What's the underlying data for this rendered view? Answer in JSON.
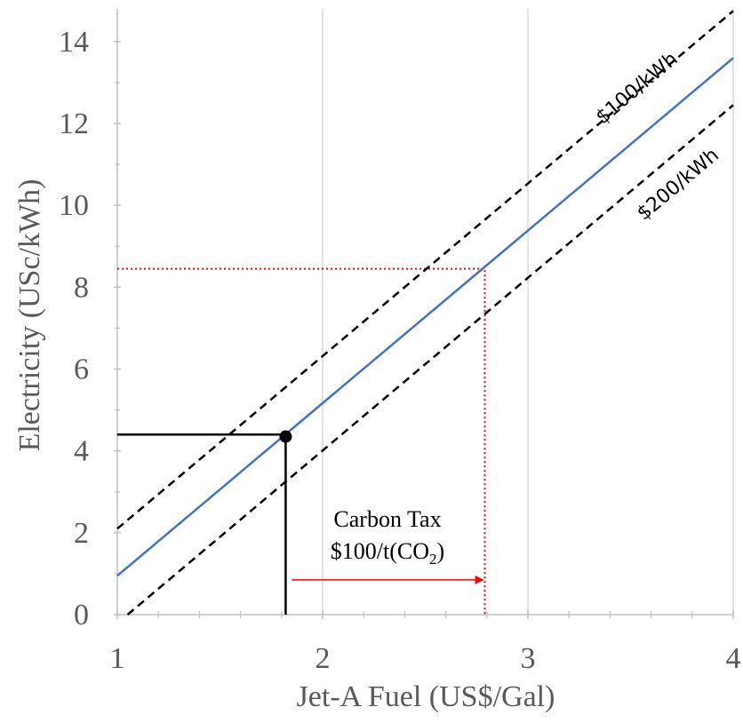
{
  "chart_data": {
    "type": "line",
    "title": "",
    "xlabel": "Jet-A Fuel (US$/Gal)",
    "ylabel": "Electricity (USc/kWh)",
    "xlim": [
      1,
      4
    ],
    "ylim": [
      0,
      14.8
    ],
    "x_ticks": [
      1,
      2,
      3,
      4
    ],
    "y_ticks": [
      0,
      2,
      4,
      6,
      8,
      10,
      12,
      14
    ],
    "x_tick_labels": [
      "1",
      "2",
      "3",
      "4"
    ],
    "y_tick_labels": [
      "0",
      "2",
      "4",
      "6",
      "8",
      "10",
      "12",
      "14"
    ],
    "x_minor_step": 0.2,
    "grid": "vertical major lines only",
    "series": [
      {
        "name": "",
        "style": "solid",
        "color": "#4472c4",
        "x": [
          1,
          4
        ],
        "y": [
          0.95,
          13.6
        ]
      },
      {
        "name": "$100/kWh",
        "style": "dashed",
        "color": "#000000",
        "x": [
          1,
          4
        ],
        "y": [
          2.1,
          14.75
        ]
      },
      {
        "name": "$200/kWh",
        "style": "dashed",
        "color": "#000000",
        "x": [
          1.05,
          4
        ],
        "y": [
          0.0,
          12.45
        ]
      }
    ],
    "line_labels": [
      {
        "text": "$100/kWh",
        "x": 3.55,
        "y": 12.75
      },
      {
        "text": "$200/kWh",
        "x": 3.75,
        "y": 10.4
      }
    ],
    "reference_lines": [
      {
        "color": "#000000",
        "style": "solid",
        "x": [
          1,
          1.82,
          1.82
        ],
        "y": [
          4.4,
          4.4,
          0
        ]
      },
      {
        "color": "#ff0000",
        "style": "dotted",
        "x": [
          1,
          2.79,
          2.79
        ],
        "y": [
          8.45,
          8.45,
          0
        ]
      }
    ],
    "markers": [
      {
        "x": 1.82,
        "y": 4.35,
        "color": "#000000"
      }
    ],
    "arrow": {
      "color": "#ff0000",
      "x_from": 1.85,
      "x_to": 2.79,
      "y": 0.85
    },
    "annotation": {
      "line1": "Carbon Tax",
      "line2_prefix": "$100/t(CO",
      "line2_sub": "2",
      "line2_suffix": ")"
    }
  }
}
